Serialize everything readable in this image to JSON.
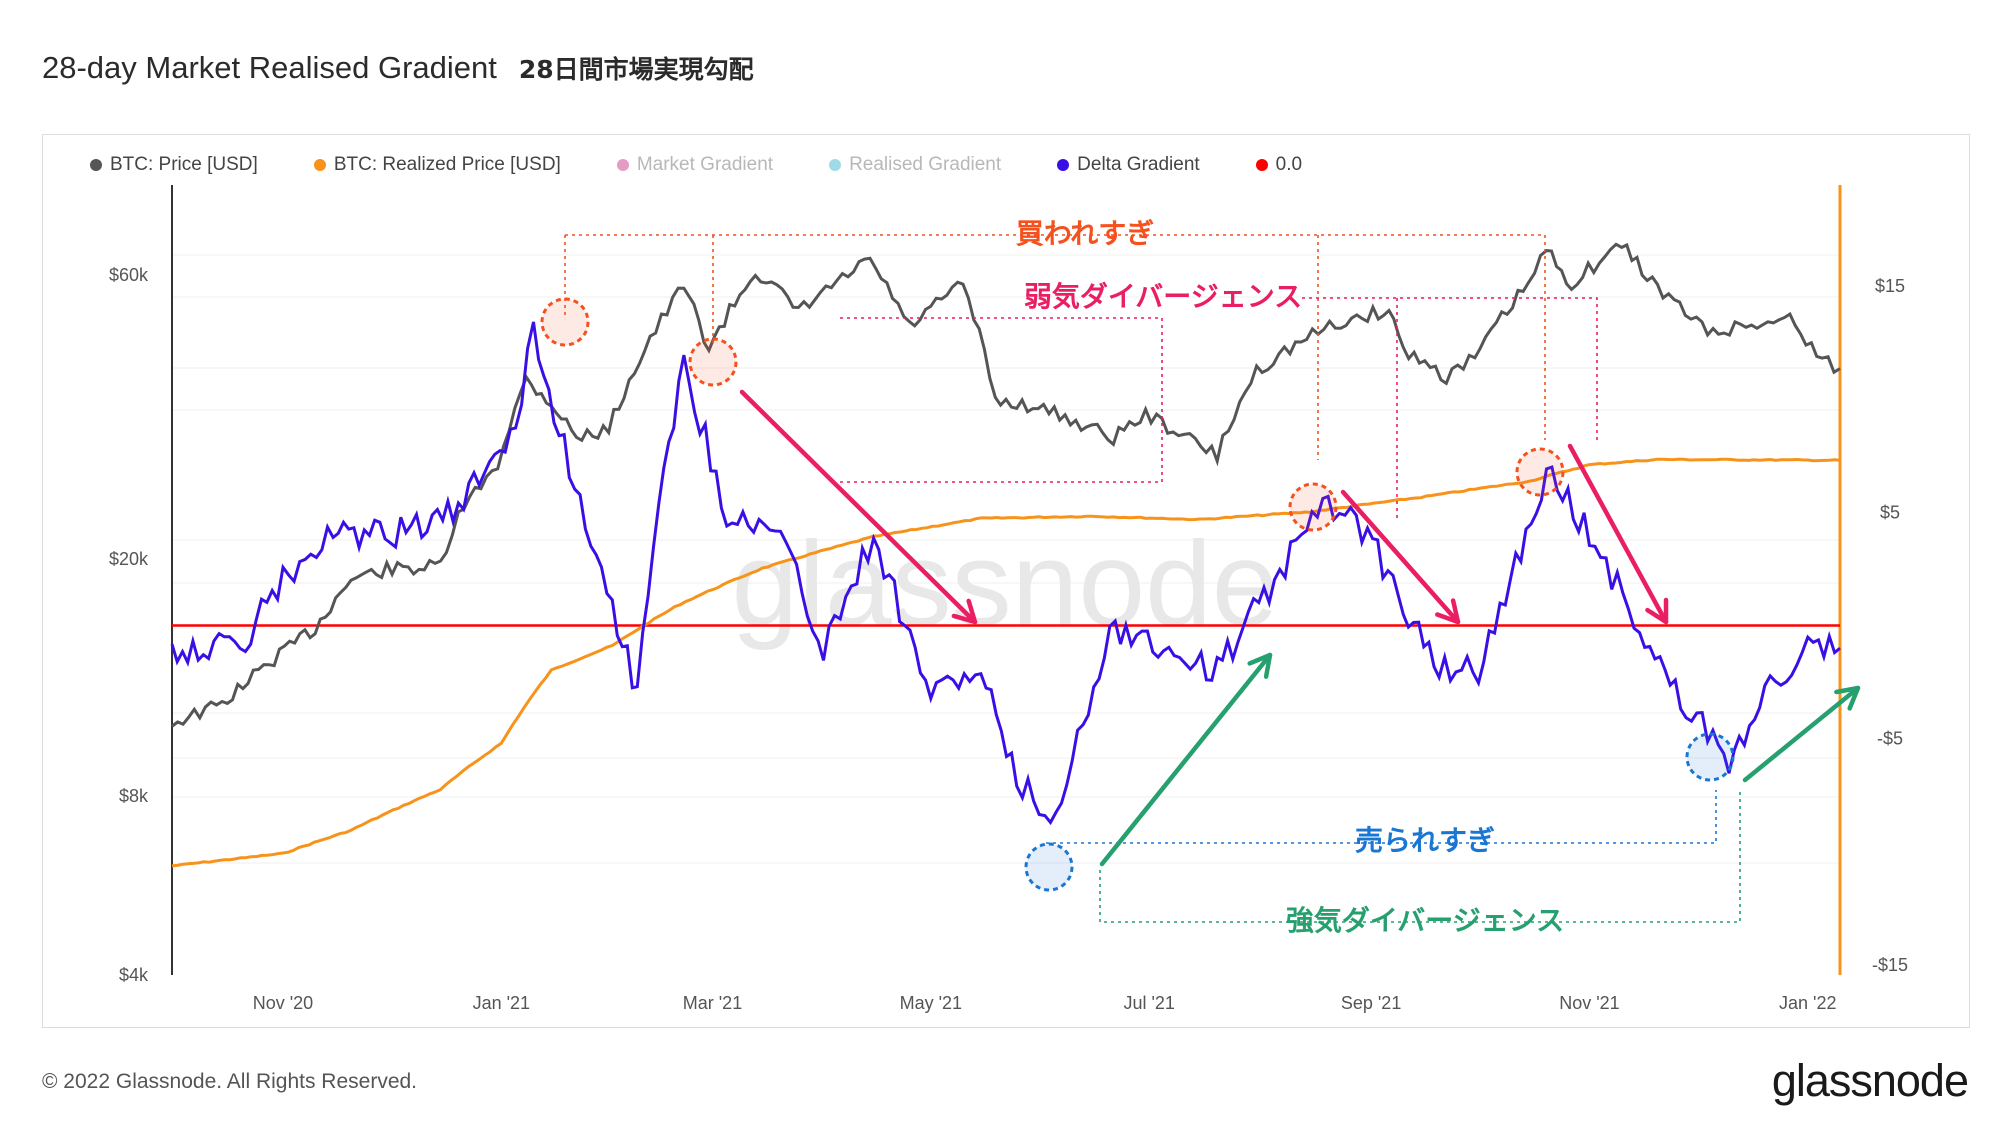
{
  "header": {
    "title": "28-day Market Realised Gradient",
    "subtitle_ja": "28日間市場実現勾配"
  },
  "legend": [
    {
      "label": "BTC: Price [USD]",
      "color": "#555555",
      "faded": false
    },
    {
      "label": "BTC: Realized Price [USD]",
      "color": "#f7931a",
      "faded": false
    },
    {
      "label": "Market Gradient",
      "color": "#d45a9a",
      "faded": true
    },
    {
      "label": "Realised Gradient",
      "color": "#5fc2d9",
      "faded": true
    },
    {
      "label": "Delta Gradient",
      "color": "#3a0fe6",
      "faded": false
    },
    {
      "label": "0.0",
      "color": "#ff0000",
      "faded": false
    }
  ],
  "footer": {
    "copyright": "© 2022 Glassnode. All Rights Reserved.",
    "logo": "glassnode",
    "watermark": "glassnode"
  },
  "annotations": {
    "overbought": "買われすぎ",
    "weak_divergence": "弱気ダイバージェンス",
    "oversold": "売られすぎ",
    "strong_divergence": "強気ダイバージェンス",
    "overbought_color": "#f4511e",
    "weak_color": "#e91e63",
    "oversold_color": "#1976d2",
    "strong_color": "#26a06f"
  },
  "chart_data": {
    "type": "line",
    "x_ticks": [
      "Nov '20",
      "Jan '21",
      "Mar '21",
      "May '21",
      "Jul '21",
      "Sep '21",
      "Nov '21",
      "Jan '22"
    ],
    "x_range": [
      "2020-10-01",
      "2022-01-10"
    ],
    "left_axis": {
      "ticks": [
        "$60k",
        "$20k",
        "$8k",
        "$4k"
      ],
      "tick_values": [
        60000,
        20000,
        8000,
        4000
      ],
      "scale": "log",
      "range": [
        4000,
        85000
      ]
    },
    "right_axis": {
      "ticks": [
        "$15",
        "$5",
        "-$5",
        "-$15"
      ],
      "tick_values": [
        15,
        5,
        -5,
        -15
      ],
      "range": [
        -15,
        15
      ]
    },
    "series": [
      {
        "name": "BTC: Price [USD]",
        "axis": "left",
        "color": "#555555",
        "points": [
          [
            "2020-10-01",
            10600
          ],
          [
            "2020-10-15",
            11400
          ],
          [
            "2020-10-31",
            13800
          ],
          [
            "2020-11-10",
            15300
          ],
          [
            "2020-11-20",
            18500
          ],
          [
            "2020-11-30",
            19200
          ],
          [
            "2020-12-15",
            19400
          ],
          [
            "2020-12-20",
            23500
          ],
          [
            "2020-12-31",
            29000
          ],
          [
            "2021-01-08",
            40000
          ],
          [
            "2021-01-15",
            36500
          ],
          [
            "2021-01-22",
            32000
          ],
          [
            "2021-01-31",
            33000
          ],
          [
            "2021-02-10",
            45000
          ],
          [
            "2021-02-21",
            57500
          ],
          [
            "2021-02-28",
            45000
          ],
          [
            "2021-03-13",
            61000
          ],
          [
            "2021-03-25",
            52000
          ],
          [
            "2021-04-14",
            63500
          ],
          [
            "2021-04-25",
            49000
          ],
          [
            "2021-05-10",
            58000
          ],
          [
            "2021-05-19",
            37000
          ],
          [
            "2021-05-31",
            36000
          ],
          [
            "2021-06-21",
            32000
          ],
          [
            "2021-06-30",
            35000
          ],
          [
            "2021-07-20",
            29800
          ],
          [
            "2021-07-31",
            41500
          ],
          [
            "2021-08-14",
            47000
          ],
          [
            "2021-08-22",
            49500
          ],
          [
            "2021-09-06",
            52500
          ],
          [
            "2021-09-10",
            45000
          ],
          [
            "2021-09-22",
            40500
          ],
          [
            "2021-09-30",
            43500
          ],
          [
            "2021-10-15",
            58000
          ],
          [
            "2021-10-20",
            66000
          ],
          [
            "2021-10-27",
            58000
          ],
          [
            "2021-11-10",
            67500
          ],
          [
            "2021-11-20",
            57000
          ],
          [
            "2021-12-04",
            48000
          ],
          [
            "2021-12-27",
            50800
          ],
          [
            "2022-01-05",
            43000
          ],
          [
            "2022-01-10",
            41800
          ]
        ]
      },
      {
        "name": "BTC: Realized Price [USD]",
        "axis": "left",
        "color": "#f7931a",
        "points": [
          [
            "2020-10-01",
            6100
          ],
          [
            "2020-11-01",
            6400
          ],
          [
            "2020-11-20",
            7000
          ],
          [
            "2020-12-15",
            8200
          ],
          [
            "2021-01-01",
            9800
          ],
          [
            "2021-01-15",
            13000
          ],
          [
            "2021-02-01",
            14300
          ],
          [
            "2021-02-20",
            16800
          ],
          [
            "2021-03-15",
            19300
          ],
          [
            "2021-04-15",
            21800
          ],
          [
            "2021-05-15",
            23400
          ],
          [
            "2021-06-15",
            23600
          ],
          [
            "2021-07-15",
            23300
          ],
          [
            "2021-08-15",
            24000
          ],
          [
            "2021-09-15",
            25400
          ],
          [
            "2021-10-15",
            27000
          ],
          [
            "2021-11-01",
            28800
          ],
          [
            "2021-11-20",
            29400
          ],
          [
            "2022-01-10",
            29300
          ]
        ]
      },
      {
        "name": "Delta Gradient",
        "axis": "right",
        "color": "#3a0fe6",
        "points": [
          [
            "2020-10-01",
            -1
          ],
          [
            "2020-10-20",
            -1
          ],
          [
            "2020-11-01",
            2
          ],
          [
            "2020-11-15",
            4
          ],
          [
            "2020-12-01",
            4
          ],
          [
            "2020-12-20",
            5
          ],
          [
            "2021-01-05",
            9
          ],
          [
            "2021-01-10",
            13
          ],
          [
            "2021-01-20",
            7
          ],
          [
            "2021-02-01",
            1
          ],
          [
            "2021-02-08",
            -3
          ],
          [
            "2021-02-14",
            6
          ],
          [
            "2021-02-21",
            11.5
          ],
          [
            "2021-03-05",
            5
          ],
          [
            "2021-03-20",
            4
          ],
          [
            "2021-04-01",
            -1
          ],
          [
            "2021-04-15",
            4
          ],
          [
            "2021-05-01",
            -3
          ],
          [
            "2021-05-15",
            -2
          ],
          [
            "2021-05-25",
            -7
          ],
          [
            "2021-06-05",
            -8.5
          ],
          [
            "2021-06-20",
            0
          ],
          [
            "2021-07-05",
            -1
          ],
          [
            "2021-07-20",
            -2
          ],
          [
            "2021-08-05",
            2
          ],
          [
            "2021-08-20",
            5.5
          ],
          [
            "2021-08-31",
            4
          ],
          [
            "2021-09-10",
            1
          ],
          [
            "2021-09-20",
            -2
          ],
          [
            "2021-10-01",
            -2
          ],
          [
            "2021-10-10",
            2
          ],
          [
            "2021-10-20",
            6.8
          ],
          [
            "2021-11-01",
            4
          ],
          [
            "2021-11-15",
            0
          ],
          [
            "2021-11-25",
            -3
          ],
          [
            "2021-12-10",
            -6
          ],
          [
            "2021-12-20",
            -3
          ],
          [
            "2022-01-01",
            -1
          ],
          [
            "2022-01-10",
            -1
          ]
        ]
      },
      {
        "name": "0.0",
        "axis": "right",
        "color": "#ff0000",
        "constant": 0
      }
    ]
  }
}
